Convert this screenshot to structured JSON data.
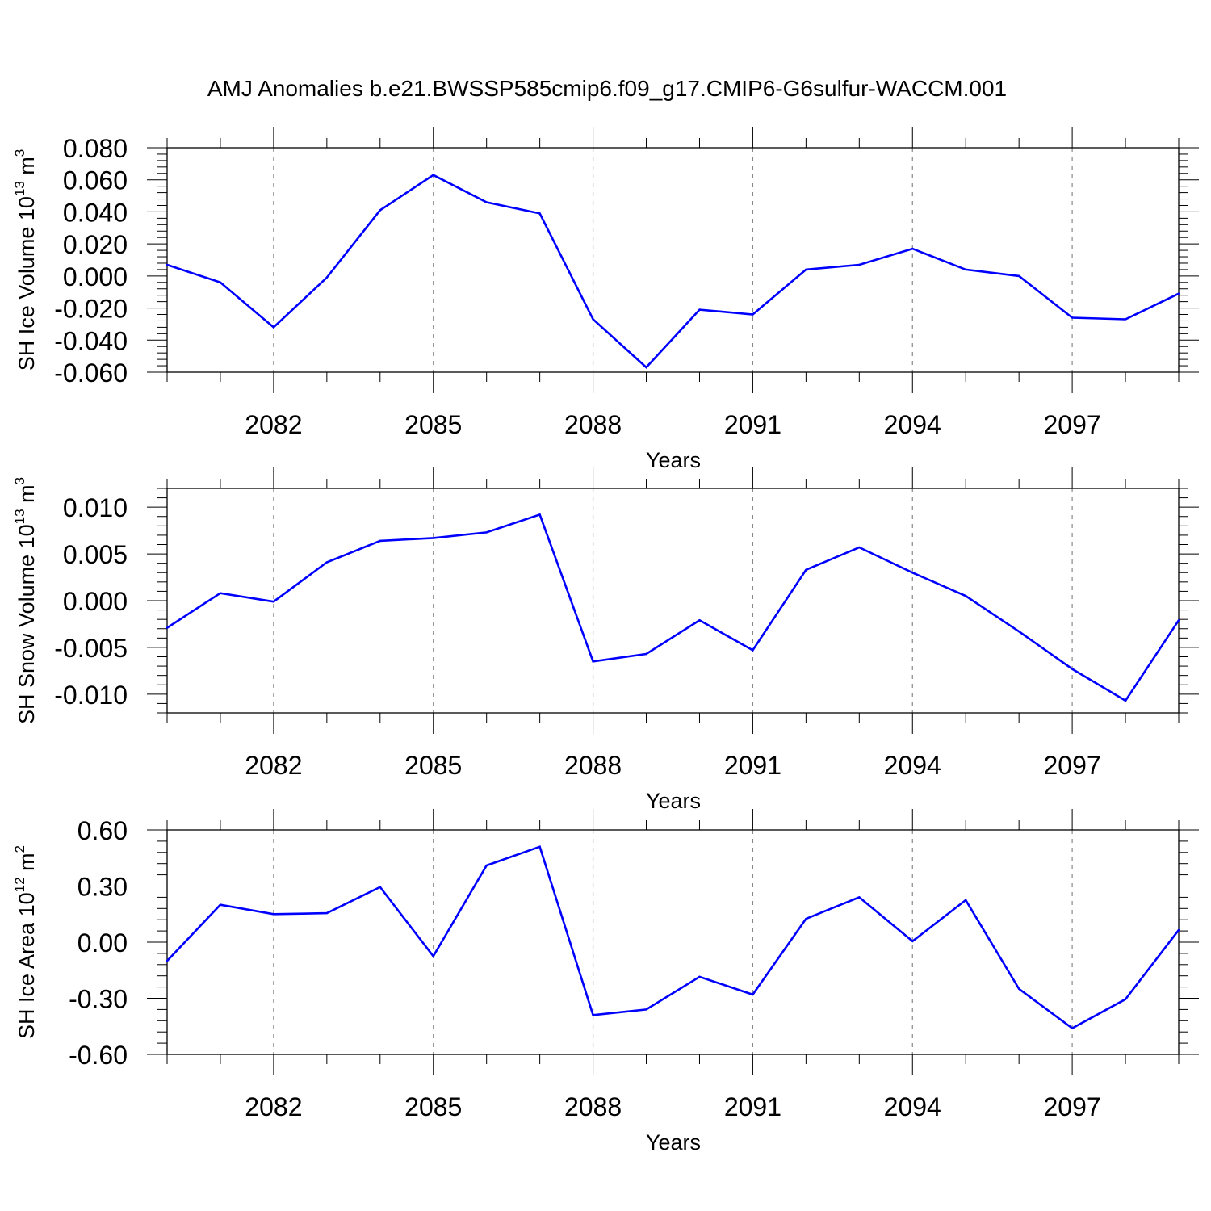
{
  "title": "AMJ Anomalies b.e21.BWSSP585cmip6.f09_g17.CMIP6-G6sulfur-WACCM.001",
  "line_color": "#0000ff",
  "chart_data": [
    {
      "type": "line",
      "xlabel": "Years",
      "ylabel": "SH Ice Volume 10",
      "ylabel_exp": "13",
      "ylabel_unit": " m",
      "ylabel_unit_exp": "3",
      "xlim": [
        2080,
        2099
      ],
      "ylim": [
        -0.06,
        0.08
      ],
      "yticks": [
        -0.06,
        -0.04,
        -0.02,
        0.0,
        0.02,
        0.04,
        0.06,
        0.08
      ],
      "ytick_labels": [
        "-0.060",
        "-0.040",
        "-0.020",
        "0.000",
        "0.020",
        "0.040",
        "0.060",
        "0.080"
      ],
      "xticks": [
        2082,
        2085,
        2088,
        2091,
        2094,
        2097
      ],
      "xtick_labels": [
        "2082",
        "2085",
        "2088",
        "2091",
        "2094",
        "2097"
      ],
      "grid": "vertical dashed at labeled years",
      "x": [
        2080,
        2081,
        2082,
        2083,
        2084,
        2085,
        2086,
        2087,
        2088,
        2089,
        2090,
        2091,
        2092,
        2093,
        2094,
        2095,
        2096,
        2097,
        2098,
        2099
      ],
      "values": [
        0.007,
        -0.004,
        -0.032,
        -0.001,
        0.041,
        0.063,
        0.046,
        0.039,
        -0.027,
        -0.057,
        -0.021,
        -0.024,
        0.004,
        0.007,
        0.017,
        0.004,
        0.0,
        -0.026,
        -0.027,
        -0.011
      ]
    },
    {
      "type": "line",
      "xlabel": "Years",
      "ylabel": "SH Snow Volume 10",
      "ylabel_exp": "13",
      "ylabel_unit": " m",
      "ylabel_unit_exp": "3",
      "xlim": [
        2080,
        2099
      ],
      "ylim": [
        -0.012,
        0.012
      ],
      "yticks": [
        -0.01,
        -0.005,
        0.0,
        0.005,
        0.01
      ],
      "ytick_labels": [
        "-0.010",
        "-0.005",
        "0.000",
        "0.005",
        "0.010"
      ],
      "xticks": [
        2082,
        2085,
        2088,
        2091,
        2094,
        2097
      ],
      "xtick_labels": [
        "2082",
        "2085",
        "2088",
        "2091",
        "2094",
        "2097"
      ],
      "grid": "vertical dashed at labeled years",
      "x": [
        2080,
        2081,
        2082,
        2083,
        2084,
        2085,
        2086,
        2087,
        2088,
        2089,
        2090,
        2091,
        2092,
        2093,
        2094,
        2095,
        2096,
        2097,
        2098,
        2099
      ],
      "values": [
        -0.0029,
        0.0008,
        -0.0001,
        0.0041,
        0.0064,
        0.0067,
        0.0073,
        0.0092,
        -0.0065,
        -0.0057,
        -0.0021,
        -0.0053,
        0.0033,
        0.0057,
        0.003,
        0.0005,
        -0.0033,
        -0.0073,
        -0.0107,
        -0.0021
      ]
    },
    {
      "type": "line",
      "xlabel": "Years",
      "ylabel": "SH Ice Area 10",
      "ylabel_exp": "12",
      "ylabel_unit": " m",
      "ylabel_unit_exp": "2",
      "xlim": [
        2080,
        2099
      ],
      "ylim": [
        -0.6,
        0.6
      ],
      "yticks": [
        -0.6,
        -0.3,
        0.0,
        0.3,
        0.6
      ],
      "ytick_labels": [
        "-0.60",
        "-0.30",
        "0.00",
        "0.30",
        "0.60"
      ],
      "xticks": [
        2082,
        2085,
        2088,
        2091,
        2094,
        2097
      ],
      "xtick_labels": [
        "2082",
        "2085",
        "2088",
        "2091",
        "2094",
        "2097"
      ],
      "grid": "vertical dashed at labeled years",
      "x": [
        2080,
        2081,
        2082,
        2083,
        2084,
        2085,
        2086,
        2087,
        2088,
        2089,
        2090,
        2091,
        2092,
        2093,
        2094,
        2095,
        2096,
        2097,
        2098,
        2099
      ],
      "values": [
        -0.1,
        0.2,
        0.15,
        0.155,
        0.295,
        -0.075,
        0.41,
        0.51,
        -0.39,
        -0.36,
        -0.185,
        -0.28,
        0.125,
        0.24,
        0.005,
        0.225,
        -0.25,
        -0.46,
        -0.305,
        0.065
      ]
    }
  ]
}
